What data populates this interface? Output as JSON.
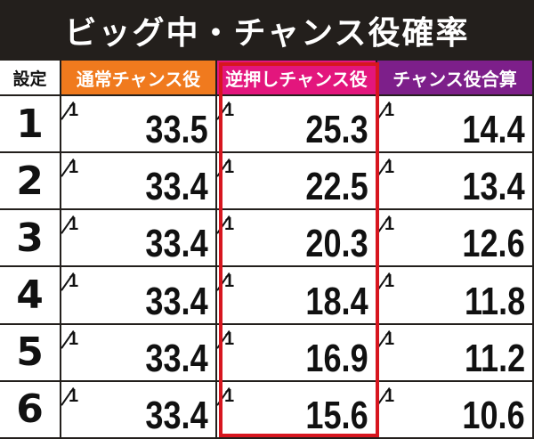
{
  "title": "ビッグ中・チャンス役確率",
  "headers": {
    "setting": "設定",
    "normal": "通常チャンス役",
    "reverse": "逆押しチャンス役",
    "total": "チャンス役合算"
  },
  "numerator": "1",
  "rows": [
    {
      "setting": "1",
      "normal": "33.5",
      "reverse": "25.3",
      "total": "14.4"
    },
    {
      "setting": "2",
      "normal": "33.4",
      "reverse": "22.5",
      "total": "13.4"
    },
    {
      "setting": "3",
      "normal": "33.4",
      "reverse": "20.3",
      "total": "12.6"
    },
    {
      "setting": "4",
      "normal": "33.4",
      "reverse": "18.4",
      "total": "11.8"
    },
    {
      "setting": "5",
      "normal": "33.4",
      "reverse": "16.9",
      "total": "11.2"
    },
    {
      "setting": "6",
      "normal": "33.4",
      "reverse": "15.6",
      "total": "10.6"
    }
  ],
  "colors": {
    "normal_header": "#f07a1e",
    "reverse_header": "#e3167d",
    "total_header": "#7d1f8a",
    "highlight_border": "#d7161f"
  }
}
